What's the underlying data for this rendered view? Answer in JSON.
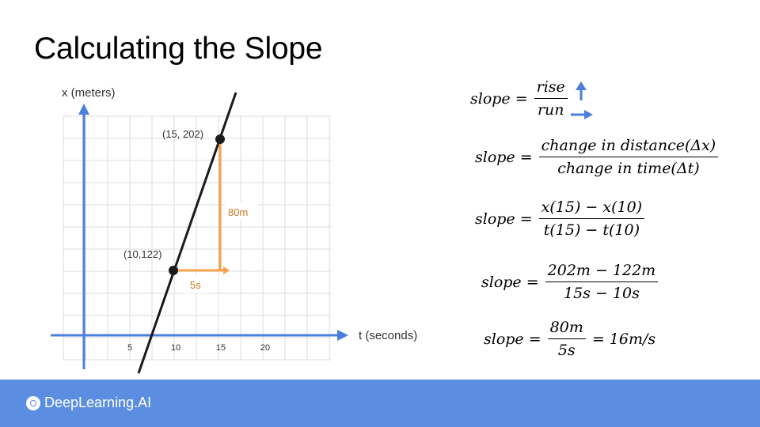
{
  "slide": {
    "title": "Calculating the Slope"
  },
  "graph": {
    "y_axis_label": "x (meters)",
    "x_axis_label": "t (seconds)",
    "x_ticks": [
      "5",
      "10",
      "15",
      "20"
    ],
    "points": [
      {
        "label": "(10,122)",
        "t": 10,
        "x": 122
      },
      {
        "label": "(15, 202)",
        "t": 15,
        "x": 202
      }
    ],
    "rise_label": "80m",
    "run_label": "5s",
    "colors": {
      "axis": "#4a7fdb",
      "grid": "#dddddd",
      "line": "#1a1a1a",
      "triangle": "#f5a04a",
      "rise_text": "#c8771e"
    }
  },
  "equations": [
    {
      "lhs": "slope =",
      "num": "rise",
      "den": "run",
      "rhs": ""
    },
    {
      "lhs": "slope =",
      "num": "change in distance(Δx)",
      "den": "change in time(Δt)",
      "rhs": ""
    },
    {
      "lhs": "slope =",
      "num": "x(15) − x(10)",
      "den": "t(15) − t(10)",
      "rhs": ""
    },
    {
      "lhs": "slope =",
      "num": "202m − 122m",
      "den": "15s − 10s",
      "rhs": ""
    },
    {
      "lhs": "slope =",
      "num": "80m",
      "den": "5s",
      "rhs": "= 16m/s"
    }
  ],
  "footer": {
    "brand": "DeepLearning.AI",
    "color": "#5b8ee0"
  }
}
